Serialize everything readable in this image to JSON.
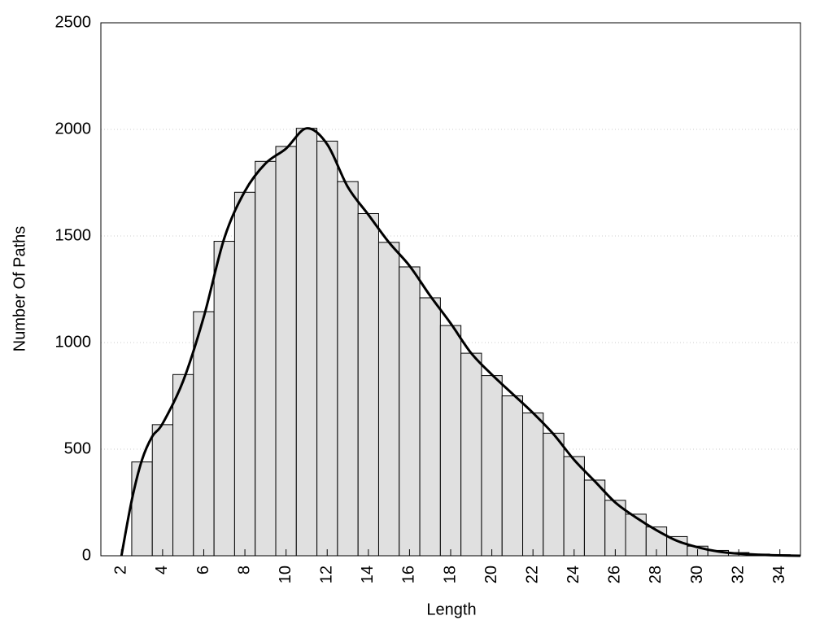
{
  "chart_data": {
    "type": "histogram",
    "xlabel": "Length",
    "ylabel": "Number Of Paths",
    "bins": [
      2.5,
      3.5,
      4.5,
      5.5,
      6.5,
      7.5,
      8.5,
      9.5,
      10.5,
      11.5,
      12.5,
      13.5,
      14.5,
      15.5,
      16.5,
      17.5,
      18.5,
      19.5,
      20.5,
      21.5,
      22.5,
      23.5,
      24.5,
      25.5,
      26.5,
      27.5,
      28.5,
      29.5,
      30.5,
      31.5,
      32.5,
      33.5,
      34.5
    ],
    "values": [
      440,
      615,
      850,
      1145,
      1475,
      1705,
      1850,
      1920,
      2005,
      1945,
      1755,
      1605,
      1470,
      1355,
      1210,
      1080,
      950,
      845,
      750,
      670,
      575,
      465,
      355,
      260,
      195,
      135,
      90,
      45,
      25,
      15,
      8,
      5
    ],
    "color": "#e0e0e0",
    "curve": {
      "x": [
        2,
        2.5,
        3,
        3.5,
        4,
        5,
        6,
        7,
        8,
        9,
        10,
        11,
        12,
        13,
        14,
        15,
        16,
        17,
        18,
        19,
        20,
        21,
        22,
        23,
        24,
        25,
        26,
        27,
        28,
        29,
        30,
        31,
        32,
        33,
        34,
        35
      ],
      "values": [
        0,
        260,
        450,
        560,
        620,
        820,
        1120,
        1490,
        1710,
        1840,
        1910,
        2005,
        1930,
        1730,
        1600,
        1470,
        1360,
        1220,
        1090,
        950,
        850,
        760,
        670,
        570,
        450,
        350,
        250,
        180,
        120,
        70,
        40,
        20,
        10,
        5,
        2,
        0
      ],
      "color": "#000000"
    },
    "xlim": [
      1,
      35
    ],
    "ylim": [
      0,
      2500
    ],
    "xticks": [
      2,
      4,
      6,
      8,
      10,
      12,
      14,
      16,
      18,
      20,
      22,
      24,
      26,
      28,
      30,
      32,
      34
    ],
    "yticks": [
      0,
      500,
      1000,
      1500,
      2000,
      2500
    ],
    "grid": true
  }
}
